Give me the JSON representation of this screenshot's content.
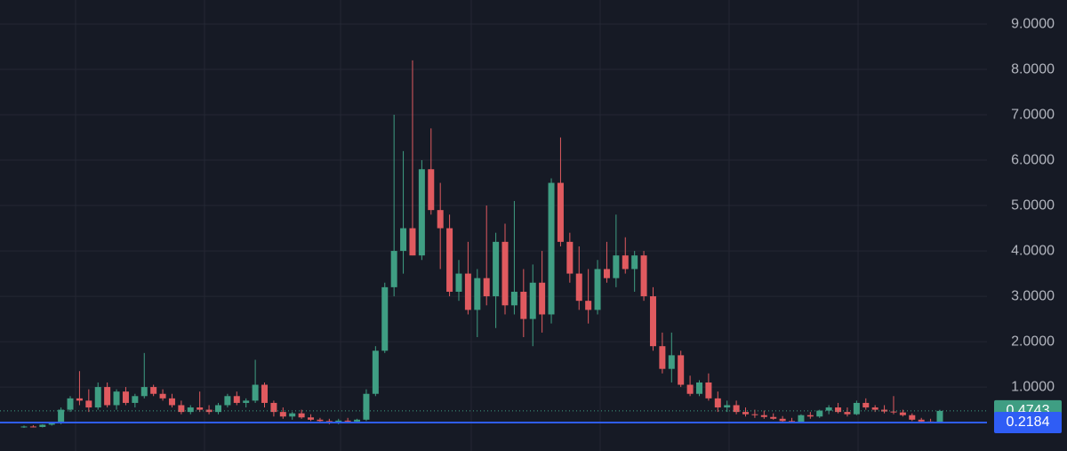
{
  "chart_data": {
    "type": "candlestick",
    "open": [
      0.12,
      0.13,
      0.12,
      0.17,
      0.2,
      0.5,
      0.75,
      0.7,
      0.55,
      1.0,
      0.6,
      0.9,
      0.65,
      0.8,
      1.0,
      0.85,
      0.75,
      0.6,
      0.45,
      0.55,
      0.5,
      0.45,
      0.6,
      0.8,
      0.65,
      0.7,
      1.05,
      0.65,
      0.45,
      0.35,
      0.42,
      0.33,
      0.28,
      0.25,
      0.22,
      0.26,
      0.24,
      0.28,
      0.85,
      1.8,
      3.2,
      4.0,
      4.5,
      3.9,
      5.8,
      4.9,
      4.5,
      3.1,
      3.5,
      2.7,
      3.4,
      3.0,
      4.2,
      2.8,
      3.1,
      2.5,
      3.3,
      2.6,
      5.5,
      4.2,
      3.5,
      2.9,
      2.7,
      3.6,
      3.4,
      3.9,
      3.6,
      3.9,
      3.0,
      1.9,
      1.4,
      1.7,
      1.05,
      0.85,
      1.1,
      0.75,
      0.55,
      0.6,
      0.45,
      0.4,
      0.38,
      0.34,
      0.3,
      0.25,
      0.22,
      0.38,
      0.35,
      0.48,
      0.55,
      0.45,
      0.4,
      0.65,
      0.55,
      0.5,
      0.46,
      0.44,
      0.38,
      0.28,
      0.24,
      0.22
    ],
    "high": [
      0.15,
      0.16,
      0.18,
      0.22,
      0.55,
      0.8,
      1.35,
      0.95,
      1.1,
      1.1,
      0.95,
      1.0,
      0.85,
      1.75,
      1.05,
      0.95,
      0.85,
      0.7,
      0.6,
      0.9,
      0.6,
      0.65,
      0.85,
      0.9,
      0.75,
      1.6,
      1.1,
      0.7,
      0.55,
      0.45,
      0.5,
      0.4,
      0.32,
      0.3,
      0.3,
      0.32,
      0.3,
      0.95,
      1.9,
      3.3,
      7.0,
      6.2,
      8.2,
      6.0,
      6.7,
      5.5,
      4.8,
      3.8,
      4.2,
      3.6,
      5.0,
      4.4,
      4.6,
      5.1,
      3.6,
      3.7,
      4.0,
      5.6,
      6.5,
      4.4,
      4.1,
      3.6,
      3.8,
      4.2,
      4.8,
      4.3,
      4.0,
      4.0,
      3.2,
      2.2,
      2.2,
      1.8,
      1.25,
      1.15,
      1.3,
      0.9,
      0.7,
      0.7,
      0.55,
      0.5,
      0.48,
      0.42,
      0.36,
      0.32,
      0.4,
      0.45,
      0.5,
      0.6,
      0.65,
      0.55,
      0.7,
      0.75,
      0.6,
      0.6,
      0.8,
      0.5,
      0.42,
      0.32,
      0.3,
      0.5
    ],
    "low": [
      0.1,
      0.11,
      0.11,
      0.15,
      0.18,
      0.45,
      0.6,
      0.45,
      0.5,
      0.55,
      0.5,
      0.6,
      0.55,
      0.75,
      0.8,
      0.7,
      0.55,
      0.4,
      0.4,
      0.45,
      0.4,
      0.4,
      0.55,
      0.6,
      0.55,
      0.65,
      0.55,
      0.35,
      0.3,
      0.28,
      0.3,
      0.25,
      0.22,
      0.18,
      0.18,
      0.2,
      0.2,
      0.25,
      0.8,
      1.75,
      3.0,
      3.5,
      3.9,
      3.8,
      4.8,
      3.6,
      3.0,
      2.9,
      2.6,
      2.1,
      2.8,
      2.3,
      2.6,
      2.6,
      2.1,
      1.9,
      2.2,
      2.4,
      4.1,
      3.3,
      2.7,
      2.4,
      2.6,
      3.3,
      3.2,
      3.5,
      3.1,
      2.9,
      1.8,
      1.3,
      1.1,
      1.0,
      0.8,
      0.8,
      0.7,
      0.45,
      0.45,
      0.4,
      0.35,
      0.32,
      0.3,
      0.28,
      0.22,
      0.2,
      0.2,
      0.3,
      0.32,
      0.4,
      0.42,
      0.35,
      0.38,
      0.5,
      0.45,
      0.42,
      0.4,
      0.35,
      0.25,
      0.22,
      0.2,
      0.21
    ],
    "close": [
      0.13,
      0.12,
      0.17,
      0.2,
      0.5,
      0.75,
      0.7,
      0.55,
      1.0,
      0.6,
      0.9,
      0.65,
      0.8,
      1.0,
      0.85,
      0.75,
      0.6,
      0.45,
      0.55,
      0.5,
      0.45,
      0.6,
      0.8,
      0.65,
      0.7,
      1.05,
      0.65,
      0.45,
      0.35,
      0.42,
      0.33,
      0.28,
      0.25,
      0.22,
      0.26,
      0.24,
      0.28,
      0.85,
      1.8,
      3.2,
      4.0,
      4.5,
      3.9,
      5.8,
      4.9,
      4.5,
      3.1,
      3.5,
      2.7,
      3.4,
      3.0,
      4.2,
      2.8,
      3.1,
      2.5,
      3.3,
      2.6,
      5.5,
      4.2,
      3.5,
      2.9,
      2.7,
      3.6,
      3.4,
      3.9,
      3.6,
      3.9,
      3.0,
      1.9,
      1.4,
      1.7,
      1.05,
      0.85,
      1.1,
      0.75,
      0.55,
      0.6,
      0.45,
      0.4,
      0.38,
      0.34,
      0.3,
      0.25,
      0.22,
      0.38,
      0.35,
      0.48,
      0.55,
      0.45,
      0.4,
      0.65,
      0.55,
      0.5,
      0.46,
      0.44,
      0.38,
      0.28,
      0.24,
      0.22,
      0.4743
    ],
    "up_color": "#3f9e83",
    "down_color": "#e05a5f",
    "last_price": 0.4743,
    "level": 0.2184,
    "level_color": "#2f5df5",
    "ylim": [
      -0.41,
      9.53
    ],
    "yticks": [
      {
        "value": 1,
        "label": "1.0000"
      },
      {
        "value": 2,
        "label": "2.0000"
      },
      {
        "value": 3,
        "label": "3.0000"
      },
      {
        "value": 4,
        "label": "4.0000"
      },
      {
        "value": 5,
        "label": "5.0000"
      },
      {
        "value": 6,
        "label": "6.0000"
      },
      {
        "value": 7,
        "label": "7.0000"
      },
      {
        "value": 8,
        "label": "8.0000"
      },
      {
        "value": 9,
        "label": "9.0000"
      }
    ],
    "grid": true
  }
}
